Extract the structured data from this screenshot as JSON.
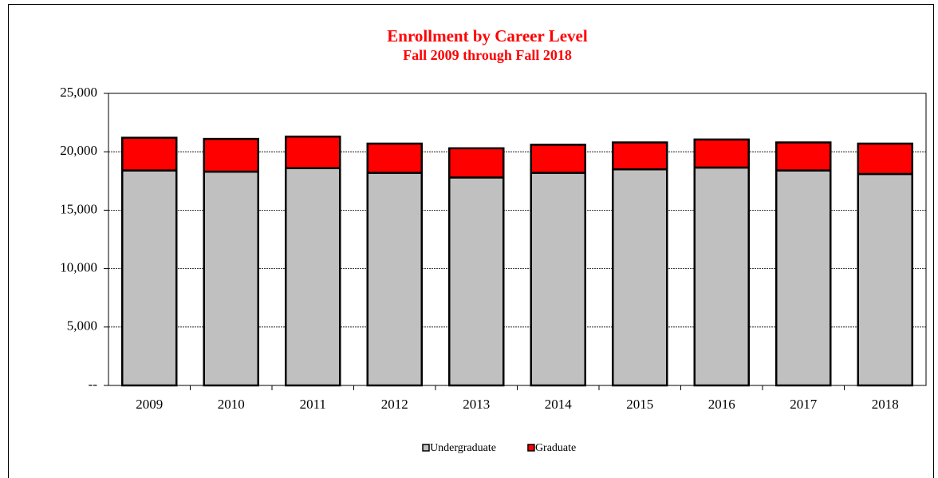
{
  "chart_data": {
    "type": "stacked_bar",
    "title": "Enrollment by Career Level",
    "subtitle": "Fall 2009 through Fall 2018",
    "categories": [
      "2009",
      "2010",
      "2011",
      "2012",
      "2013",
      "2014",
      "2015",
      "2016",
      "2017",
      "2018"
    ],
    "series": [
      {
        "name": "Undergraduate",
        "color": "#c0c0c0",
        "values": [
          18400,
          18300,
          18600,
          18200,
          17800,
          18200,
          18500,
          18650,
          18400,
          18100
        ]
      },
      {
        "name": "Graduate",
        "color": "#ff0000",
        "values": [
          2800,
          2800,
          2700,
          2500,
          2500,
          2400,
          2300,
          2400,
          2400,
          2600
        ]
      }
    ],
    "ylim": [
      0,
      25000
    ],
    "yticks": [
      {
        "value": 0,
        "label": "--"
      },
      {
        "value": 5000,
        "label": "5,000"
      },
      {
        "value": 10000,
        "label": "10,000"
      },
      {
        "value": 15000,
        "label": "15,000"
      },
      {
        "value": 20000,
        "label": "20,000"
      },
      {
        "value": 25000,
        "label": "25,000"
      }
    ],
    "grid": true,
    "legend": "bottom"
  }
}
